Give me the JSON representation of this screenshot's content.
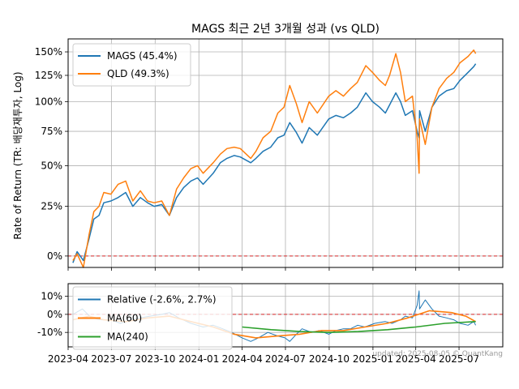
{
  "chart_data": [
    {
      "type": "line",
      "title": "MAGS 최근 2년 3개월 성과 (vs QLD)",
      "ylabel": "Rate of Return (TR: 배당재투자, Log)",
      "y_scale": "log(1+r)",
      "ylim_percent": [
        -5,
        165
      ],
      "ytick_labels": [
        "0%",
        "25%",
        "50%",
        "75%",
        "100%",
        "125%",
        "150%"
      ],
      "ytick_values": [
        0,
        25,
        50,
        75,
        100,
        125,
        150
      ],
      "x_range": [
        "2023-04-01",
        "2025-10-01"
      ],
      "grid": true,
      "legend_position": "top-left",
      "reference_line": {
        "value": 0,
        "color": "#d62728",
        "style": "dashed"
      },
      "series": [
        {
          "name": "MAGS (45.4%)",
          "color": "#1f77b4",
          "points": [
            [
              "2023-04-11",
              -3
            ],
            [
              "2023-04-20",
              2
            ],
            [
              "2023-05-03",
              -2
            ],
            [
              "2023-05-15",
              8
            ],
            [
              "2023-05-25",
              18
            ],
            [
              "2023-06-05",
              20
            ],
            [
              "2023-06-15",
              27
            ],
            [
              "2023-06-30",
              28
            ],
            [
              "2023-07-15",
              30
            ],
            [
              "2023-07-31",
              33
            ],
            [
              "2023-08-15",
              25
            ],
            [
              "2023-08-31",
              30
            ],
            [
              "2023-09-15",
              27
            ],
            [
              "2023-09-29",
              25
            ],
            [
              "2023-10-15",
              26
            ],
            [
              "2023-10-31",
              20
            ],
            [
              "2023-11-15",
              30
            ],
            [
              "2023-11-30",
              36
            ],
            [
              "2023-12-15",
              40
            ],
            [
              "2023-12-29",
              42
            ],
            [
              "2024-01-10",
              38
            ],
            [
              "2024-01-31",
              45
            ],
            [
              "2024-02-15",
              52
            ],
            [
              "2024-02-29",
              55
            ],
            [
              "2024-03-15",
              57
            ],
            [
              "2024-03-28",
              56
            ],
            [
              "2024-04-19",
              52
            ],
            [
              "2024-04-30",
              55
            ],
            [
              "2024-05-15",
              60
            ],
            [
              "2024-05-31",
              63
            ],
            [
              "2024-06-15",
              70
            ],
            [
              "2024-06-28",
              72
            ],
            [
              "2024-07-10",
              82
            ],
            [
              "2024-07-24",
              74
            ],
            [
              "2024-08-05",
              66
            ],
            [
              "2024-08-20",
              78
            ],
            [
              "2024-09-06",
              72
            ],
            [
              "2024-09-30",
              85
            ],
            [
              "2024-10-15",
              88
            ],
            [
              "2024-10-31",
              86
            ],
            [
              "2024-11-15",
              90
            ],
            [
              "2024-11-29",
              95
            ],
            [
              "2024-12-17",
              108
            ],
            [
              "2024-12-31",
              100
            ],
            [
              "2025-01-15",
              95
            ],
            [
              "2025-01-27",
              90
            ],
            [
              "2025-02-05",
              97
            ],
            [
              "2025-02-18",
              108
            ],
            [
              "2025-02-28",
              100
            ],
            [
              "2025-03-10",
              88
            ],
            [
              "2025-03-25",
              92
            ],
            [
              "2025-04-04",
              75
            ],
            [
              "2025-04-08",
              70
            ],
            [
              "2025-04-09",
              92
            ],
            [
              "2025-04-21",
              75
            ],
            [
              "2025-05-05",
              95
            ],
            [
              "2025-05-20",
              105
            ],
            [
              "2025-06-05",
              110
            ],
            [
              "2025-06-20",
              112
            ],
            [
              "2025-07-03",
              120
            ],
            [
              "2025-07-20",
              128
            ],
            [
              "2025-08-01",
              134
            ],
            [
              "2025-08-05",
              137
            ]
          ]
        },
        {
          "name": "QLD (49.3%)",
          "color": "#ff7f0e",
          "points": [
            [
              "2023-04-11",
              -2
            ],
            [
              "2023-04-20",
              1
            ],
            [
              "2023-05-03",
              -5
            ],
            [
              "2023-05-15",
              10
            ],
            [
              "2023-05-25",
              22
            ],
            [
              "2023-06-05",
              25
            ],
            [
              "2023-06-15",
              33
            ],
            [
              "2023-06-30",
              32
            ],
            [
              "2023-07-15",
              38
            ],
            [
              "2023-07-31",
              40
            ],
            [
              "2023-08-15",
              28
            ],
            [
              "2023-08-31",
              34
            ],
            [
              "2023-09-15",
              28
            ],
            [
              "2023-09-29",
              27
            ],
            [
              "2023-10-15",
              28
            ],
            [
              "2023-10-31",
              20
            ],
            [
              "2023-11-15",
              35
            ],
            [
              "2023-11-30",
              42
            ],
            [
              "2023-12-15",
              48
            ],
            [
              "2023-12-29",
              50
            ],
            [
              "2024-01-10",
              45
            ],
            [
              "2024-01-31",
              52
            ],
            [
              "2024-02-15",
              58
            ],
            [
              "2024-02-29",
              62
            ],
            [
              "2024-03-15",
              63
            ],
            [
              "2024-03-28",
              62
            ],
            [
              "2024-04-19",
              55
            ],
            [
              "2024-04-30",
              60
            ],
            [
              "2024-05-15",
              70
            ],
            [
              "2024-05-31",
              75
            ],
            [
              "2024-06-15",
              90
            ],
            [
              "2024-06-28",
              95
            ],
            [
              "2024-07-10",
              115
            ],
            [
              "2024-07-24",
              98
            ],
            [
              "2024-08-05",
              82
            ],
            [
              "2024-08-20",
              100
            ],
            [
              "2024-09-06",
              90
            ],
            [
              "2024-09-30",
              105
            ],
            [
              "2024-10-15",
              110
            ],
            [
              "2024-10-31",
              105
            ],
            [
              "2024-11-15",
              112
            ],
            [
              "2024-11-29",
              118
            ],
            [
              "2024-12-17",
              135
            ],
            [
              "2024-12-31",
              128
            ],
            [
              "2025-01-15",
              120
            ],
            [
              "2025-01-27",
              115
            ],
            [
              "2025-02-05",
              125
            ],
            [
              "2025-02-18",
              148
            ],
            [
              "2025-02-28",
              128
            ],
            [
              "2025-03-10",
              100
            ],
            [
              "2025-03-25",
              105
            ],
            [
              "2025-04-04",
              70
            ],
            [
              "2025-04-08",
              45
            ],
            [
              "2025-04-09",
              85
            ],
            [
              "2025-04-21",
              65
            ],
            [
              "2025-05-05",
              95
            ],
            [
              "2025-05-20",
              112
            ],
            [
              "2025-06-05",
              122
            ],
            [
              "2025-06-20",
              128
            ],
            [
              "2025-07-03",
              138
            ],
            [
              "2025-07-20",
              145
            ],
            [
              "2025-08-01",
              152
            ],
            [
              "2025-08-05",
              148
            ]
          ]
        }
      ]
    },
    {
      "type": "line",
      "ylim_percent": [
        -18,
        17
      ],
      "ytick_labels": [
        "10%",
        "0%",
        "-10%"
      ],
      "ytick_values": [
        10,
        0,
        -10
      ],
      "xtick_labels": [
        "2023-04",
        "2023-07",
        "2023-10",
        "2024-01",
        "2024-04",
        "2024-07",
        "2024-10",
        "2025-01",
        "2025-04",
        "2025-07"
      ],
      "xtick_dates": [
        "2023-04-01",
        "2023-07-01",
        "2023-10-01",
        "2024-01-01",
        "2024-04-01",
        "2024-07-01",
        "2024-10-01",
        "2025-01-01",
        "2025-04-01",
        "2025-07-01"
      ],
      "x_range": [
        "2023-04-01",
        "2025-10-01"
      ],
      "grid": true,
      "legend_position": "top-left",
      "reference_line": {
        "value": 0,
        "color": "#d62728",
        "style": "dashed"
      },
      "series": [
        {
          "name": "Relative (-2.6%, 2.7%)",
          "color": "#1f77b4",
          "points": [
            [
              "2023-04-11",
              0
            ],
            [
              "2023-05-01",
              3
            ],
            [
              "2023-05-20",
              -2
            ],
            [
              "2023-06-10",
              -3
            ],
            [
              "2023-06-30",
              -3
            ],
            [
              "2023-07-20",
              -5
            ],
            [
              "2023-08-10",
              -3
            ],
            [
              "2023-08-31",
              -2
            ],
            [
              "2023-09-20",
              -1
            ],
            [
              "2023-10-15",
              0
            ],
            [
              "2023-10-31",
              1
            ],
            [
              "2023-11-20",
              -2
            ],
            [
              "2023-12-15",
              -5
            ],
            [
              "2024-01-10",
              -7
            ],
            [
              "2024-01-31",
              -6
            ],
            [
              "2024-02-20",
              -8
            ],
            [
              "2024-03-10",
              -10
            ],
            [
              "2024-04-01",
              -13
            ],
            [
              "2024-04-19",
              -15
            ],
            [
              "2024-05-05",
              -13
            ],
            [
              "2024-05-25",
              -10
            ],
            [
              "2024-06-15",
              -12
            ],
            [
              "2024-06-30",
              -13
            ],
            [
              "2024-07-10",
              -15
            ],
            [
              "2024-07-24",
              -11
            ],
            [
              "2024-08-05",
              -8
            ],
            [
              "2024-08-25",
              -10
            ],
            [
              "2024-09-10",
              -9
            ],
            [
              "2024-09-30",
              -11
            ],
            [
              "2024-10-15",
              -9
            ],
            [
              "2024-10-31",
              -8
            ],
            [
              "2024-11-15",
              -8
            ],
            [
              "2024-11-30",
              -6
            ],
            [
              "2024-12-15",
              -7
            ],
            [
              "2025-01-05",
              -5
            ],
            [
              "2025-01-27",
              -4
            ],
            [
              "2025-02-10",
              -5
            ],
            [
              "2025-02-28",
              -3
            ],
            [
              "2025-03-10",
              -1
            ],
            [
              "2025-03-25",
              -2
            ],
            [
              "2025-04-04",
              5
            ],
            [
              "2025-04-08",
              13
            ],
            [
              "2025-04-09",
              3
            ],
            [
              "2025-04-21",
              8
            ],
            [
              "2025-05-05",
              3
            ],
            [
              "2025-05-20",
              -1
            ],
            [
              "2025-06-05",
              -2
            ],
            [
              "2025-06-20",
              -3
            ],
            [
              "2025-07-03",
              -5
            ],
            [
              "2025-07-20",
              -6
            ],
            [
              "2025-08-01",
              -4
            ],
            [
              "2025-08-05",
              -6
            ]
          ]
        },
        {
          "name": "MA(60)",
          "color": "#ff7f0e",
          "points": [
            [
              "2023-04-11",
              -3
            ],
            [
              "2023-05-15",
              -1
            ],
            [
              "2023-06-15",
              -3
            ],
            [
              "2023-07-31",
              -4
            ],
            [
              "2023-09-15",
              -2
            ],
            [
              "2023-10-31",
              -1
            ],
            [
              "2023-12-15",
              -4
            ],
            [
              "2024-01-31",
              -7
            ],
            [
              "2024-03-15",
              -11
            ],
            [
              "2024-04-30",
              -13
            ],
            [
              "2024-06-15",
              -12
            ],
            [
              "2024-07-31",
              -11
            ],
            [
              "2024-09-15",
              -9
            ],
            [
              "2024-10-31",
              -9
            ],
            [
              "2024-12-15",
              -7
            ],
            [
              "2025-01-31",
              -5
            ],
            [
              "2025-03-15",
              -2
            ],
            [
              "2025-04-30",
              2
            ],
            [
              "2025-06-15",
              1
            ],
            [
              "2025-07-15",
              -1
            ],
            [
              "2025-08-05",
              -4
            ]
          ]
        },
        {
          "name": "MA(240)",
          "color": "#2ca02c",
          "points": [
            [
              "2024-04-01",
              -7
            ],
            [
              "2024-06-01",
              -8.5
            ],
            [
              "2024-08-01",
              -9.5
            ],
            [
              "2024-10-01",
              -10
            ],
            [
              "2024-12-01",
              -9.5
            ],
            [
              "2025-02-01",
              -8.5
            ],
            [
              "2025-04-01",
              -7
            ],
            [
              "2025-06-01",
              -5
            ],
            [
              "2025-08-05",
              -4
            ]
          ]
        }
      ]
    }
  ],
  "footer": {
    "text": "updated: 2025-08-05 © QuantKang"
  }
}
